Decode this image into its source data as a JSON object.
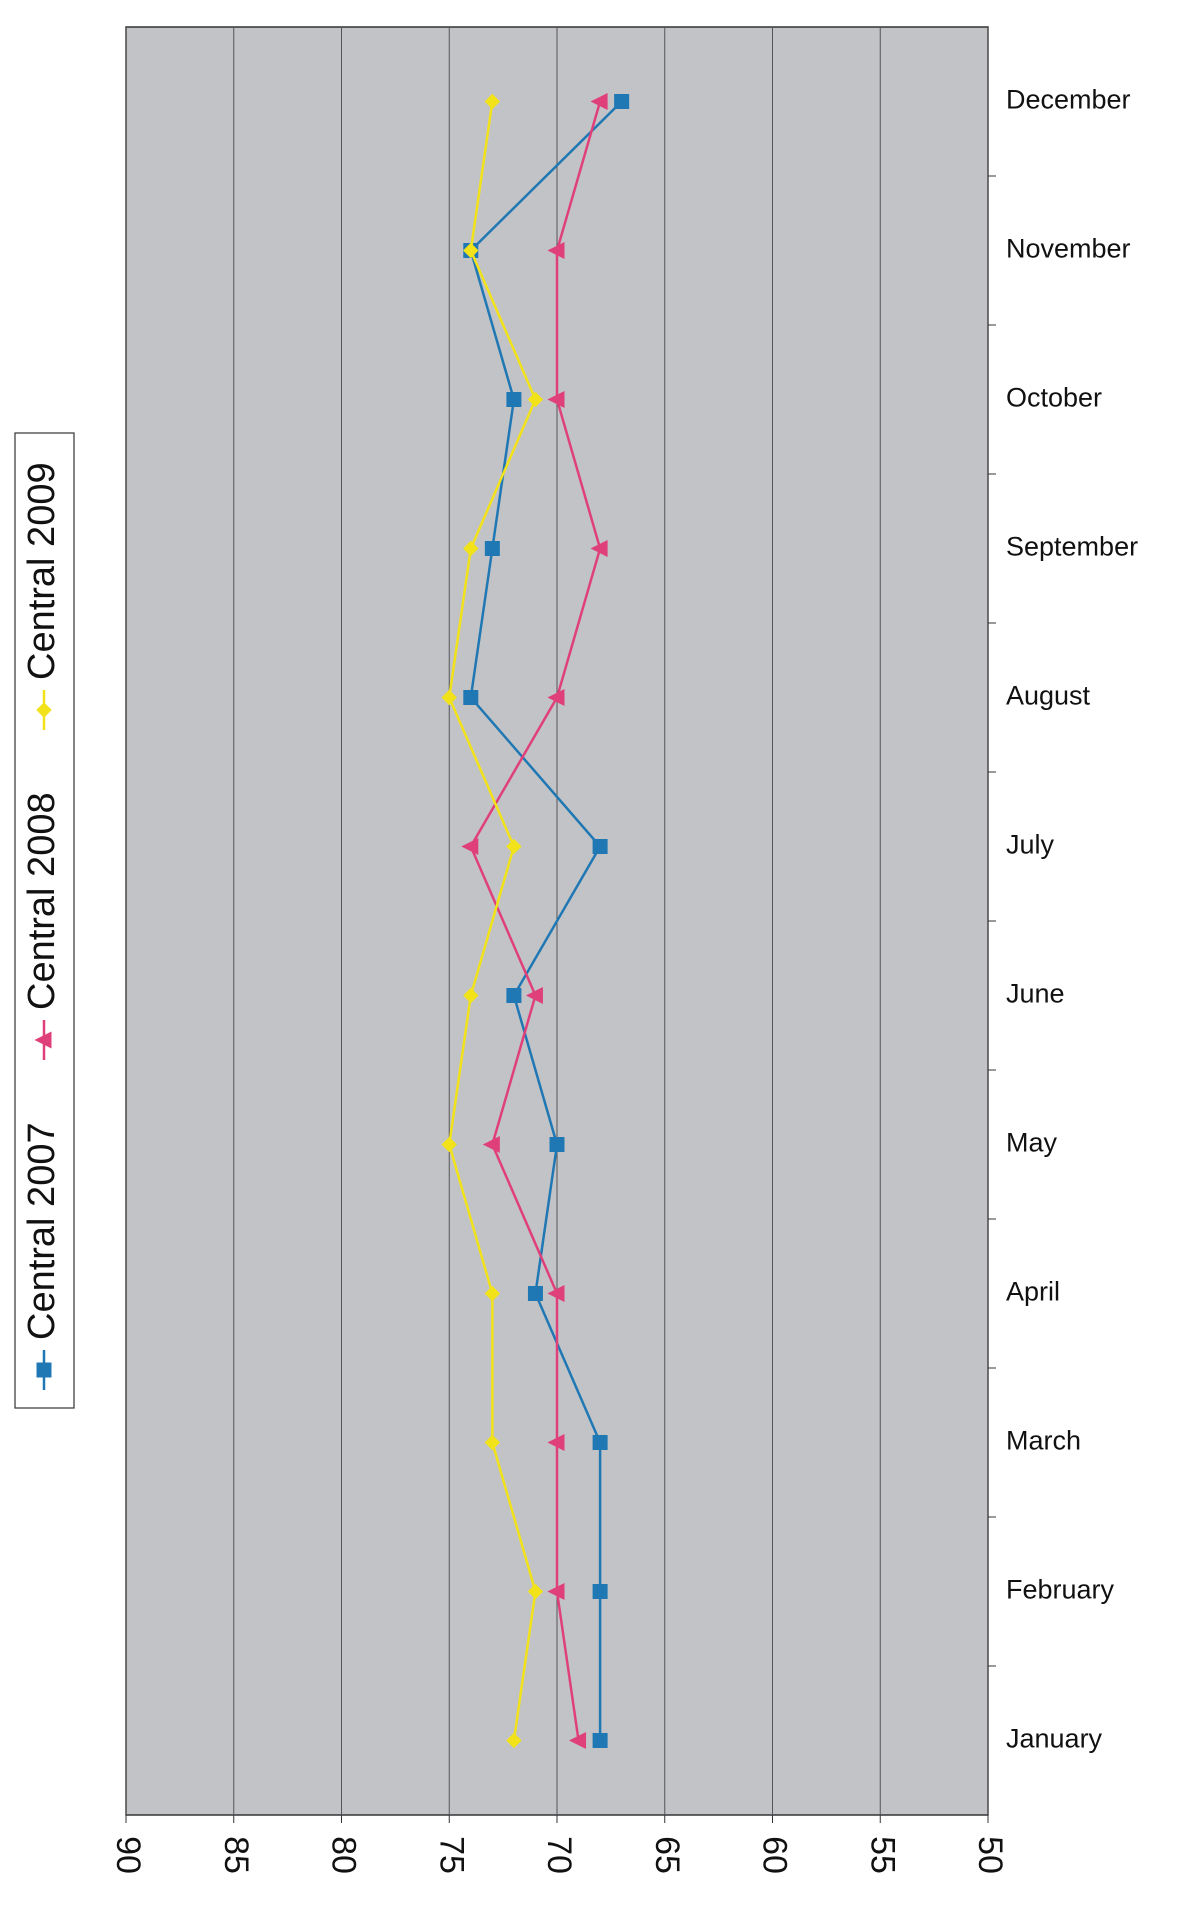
{
  "chart_data": {
    "type": "line",
    "categories": [
      "January",
      "February",
      "March",
      "April",
      "May",
      "June",
      "July",
      "August",
      "September",
      "October",
      "November",
      "December"
    ],
    "series": [
      {
        "name": "Central 2007",
        "color": "#1f78b4",
        "marker": "square",
        "values": [
          68,
          68,
          68,
          71,
          70,
          72,
          68,
          74,
          73,
          72,
          74,
          67
        ]
      },
      {
        "name": "Central 2008",
        "color": "#e0407a",
        "marker": "triangle",
        "values": [
          69,
          70,
          70,
          70,
          73,
          71,
          74,
          70,
          68,
          70,
          70,
          68
        ]
      },
      {
        "name": "Central 2009",
        "color": "#f2e21a",
        "marker": "diamond",
        "values": [
          72,
          71,
          73,
          73,
          75,
          74,
          72,
          75,
          74,
          71,
          74,
          73
        ]
      }
    ],
    "ylim": [
      90,
      50
    ],
    "yticks": [
      90,
      85,
      80,
      75,
      70,
      65,
      60,
      55,
      50
    ],
    "grid": true
  }
}
